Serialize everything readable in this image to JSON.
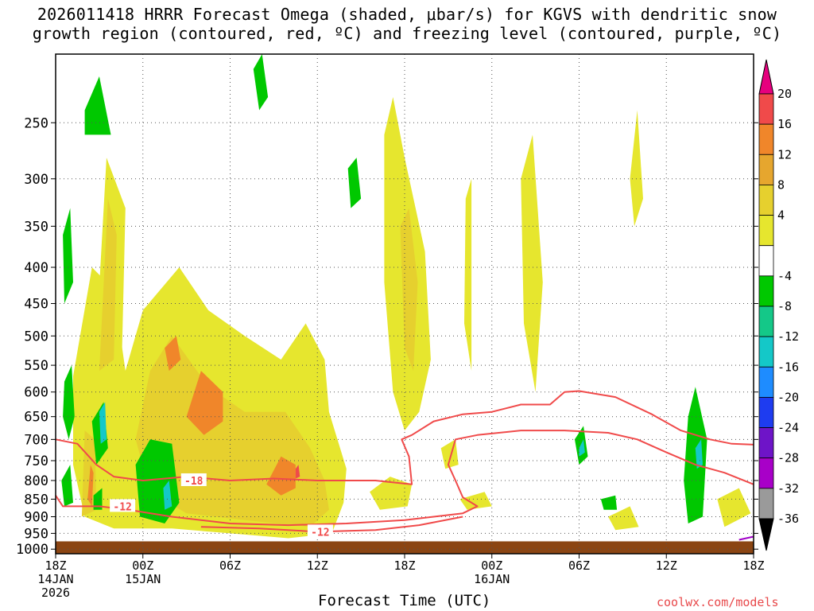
{
  "title_line1": "2026011418 HRRR Forecast Omega (shaded, μbar/s) for KGVS with dendritic snow",
  "title_line2": "growth region (contoured, red, ºC) and freezing level (contoured, purple, ºC)",
  "xlabel": "Forecast Time (UTC)",
  "credit": "coolwx.com/models",
  "chart_data": {
    "type": "heatmap",
    "x_ticks": [
      {
        "hour": 0,
        "lines": [
          "18Z",
          "14JAN",
          "2026"
        ]
      },
      {
        "hour": 6,
        "lines": [
          "00Z",
          "15JAN"
        ]
      },
      {
        "hour": 12,
        "lines": [
          "06Z"
        ]
      },
      {
        "hour": 18,
        "lines": [
          "12Z"
        ]
      },
      {
        "hour": 24,
        "lines": [
          "18Z"
        ]
      },
      {
        "hour": 30,
        "lines": [
          "00Z",
          "16JAN"
        ]
      },
      {
        "hour": 36,
        "lines": [
          "06Z"
        ]
      },
      {
        "hour": 42,
        "lines": [
          "12Z"
        ]
      },
      {
        "hour": 48,
        "lines": [
          "18Z"
        ]
      }
    ],
    "y_ticks": [
      250,
      300,
      350,
      400,
      450,
      500,
      550,
      600,
      650,
      700,
      750,
      800,
      850,
      900,
      950,
      1000
    ],
    "y_scale": "log-pressure",
    "y_range": [
      1015,
      200
    ],
    "x_range": [
      0,
      48
    ],
    "grid": true,
    "colorbar": {
      "labels": [
        "20",
        "16",
        "12",
        "8",
        "4",
        "-4",
        "-8",
        "-12",
        "-16",
        "-20",
        "-24",
        "-28",
        "-32",
        "-36"
      ],
      "colors": [
        "#e6007e",
        "#f04a4a",
        "#f0862a",
        "#e6a62e",
        "#e6d02e",
        "#e6e62e",
        "#ffffff",
        "#00c800",
        "#14c888",
        "#14c8c8",
        "#1e8cff",
        "#1e3cf0",
        "#6e14c8",
        "#a800c8",
        "#9a9a9a",
        "#000000"
      ]
    },
    "omega_regions": [
      {
        "level": 4,
        "pts": [
          [
            1.2,
            570
          ],
          [
            2.5,
            400
          ],
          [
            4,
            430
          ],
          [
            4.8,
            560
          ],
          [
            6,
            460
          ],
          [
            8.5,
            400
          ],
          [
            10.5,
            460
          ],
          [
            13,
            500
          ],
          [
            15.5,
            540
          ],
          [
            17.2,
            480
          ],
          [
            18.5,
            540
          ],
          [
            18.8,
            640
          ],
          [
            20,
            770
          ],
          [
            19.8,
            860
          ],
          [
            19,
            950
          ],
          [
            16,
            965
          ],
          [
            12,
            950
          ],
          [
            8,
            935
          ],
          [
            4,
            935
          ],
          [
            2,
            900
          ],
          [
            1.2,
            760
          ]
        ]
      },
      {
        "level": 4,
        "pts": [
          [
            2.5,
            650
          ],
          [
            3.5,
            280
          ],
          [
            4.8,
            330
          ],
          [
            4.5,
            600
          ]
        ]
      },
      {
        "level": 4,
        "pts": [
          [
            22.6,
            260
          ],
          [
            23.2,
            230
          ],
          [
            24,
            280
          ],
          [
            25.4,
            380
          ],
          [
            25.8,
            540
          ],
          [
            25,
            640
          ],
          [
            24,
            680
          ],
          [
            23.2,
            600
          ],
          [
            22.6,
            420
          ]
        ]
      },
      {
        "level": 4,
        "pts": [
          [
            21.6,
            830
          ],
          [
            23,
            790
          ],
          [
            24.5,
            810
          ],
          [
            24.2,
            870
          ],
          [
            22.3,
            880
          ]
        ]
      },
      {
        "level": 4,
        "pts": [
          [
            32,
            300
          ],
          [
            32.8,
            260
          ],
          [
            33.5,
            420
          ],
          [
            33,
            600
          ],
          [
            32.2,
            480
          ]
        ]
      },
      {
        "level": 4,
        "pts": [
          [
            28.2,
            320
          ],
          [
            28.6,
            300
          ],
          [
            28.6,
            560
          ],
          [
            28.1,
            480
          ]
        ]
      },
      {
        "level": 4,
        "pts": [
          [
            39.5,
            300
          ],
          [
            40,
            240
          ],
          [
            40.4,
            320
          ],
          [
            39.8,
            350
          ]
        ]
      },
      {
        "level": 4,
        "pts": [
          [
            26.5,
            720
          ],
          [
            27.5,
            700
          ],
          [
            27.7,
            760
          ],
          [
            26.8,
            770
          ]
        ]
      },
      {
        "level": 4,
        "pts": [
          [
            27.8,
            850
          ],
          [
            29.5,
            830
          ],
          [
            30,
            870
          ],
          [
            28.3,
            880
          ]
        ]
      },
      {
        "level": 4,
        "pts": [
          [
            38,
            900
          ],
          [
            39.5,
            870
          ],
          [
            40.1,
            930
          ],
          [
            38.5,
            940
          ]
        ]
      },
      {
        "level": 4,
        "pts": [
          [
            45.5,
            850
          ],
          [
            47,
            820
          ],
          [
            47.8,
            890
          ],
          [
            46,
            930
          ]
        ]
      },
      {
        "level": 8,
        "pts": [
          [
            3,
            560
          ],
          [
            3.6,
            320
          ],
          [
            4.2,
            360
          ],
          [
            4,
            540
          ]
        ]
      },
      {
        "level": 8,
        "pts": [
          [
            5.5,
            700
          ],
          [
            6.5,
            560
          ],
          [
            8,
            500
          ],
          [
            10.5,
            590
          ],
          [
            13,
            640
          ],
          [
            15.8,
            640
          ],
          [
            17.5,
            720
          ],
          [
            18.5,
            800
          ],
          [
            18.8,
            880
          ],
          [
            17.5,
            930
          ],
          [
            13,
            910
          ],
          [
            9,
            890
          ],
          [
            6.5,
            830
          ]
        ]
      },
      {
        "level": 8,
        "pts": [
          [
            23.7,
            350
          ],
          [
            24.3,
            330
          ],
          [
            24.9,
            420
          ],
          [
            24.6,
            560
          ],
          [
            24,
            520
          ]
        ]
      },
      {
        "level": 8,
        "pts": [
          [
            1.8,
            900
          ],
          [
            2,
            680
          ],
          [
            2.7,
            700
          ],
          [
            2.8,
            880
          ]
        ]
      },
      {
        "level": 12,
        "pts": [
          [
            9,
            650
          ],
          [
            10,
            560
          ],
          [
            11.5,
            600
          ],
          [
            11.5,
            660
          ],
          [
            10.2,
            690
          ]
        ]
      },
      {
        "level": 12,
        "pts": [
          [
            14.5,
            810
          ],
          [
            15.5,
            740
          ],
          [
            16.5,
            760
          ],
          [
            16.5,
            820
          ],
          [
            15.5,
            840
          ]
        ]
      },
      {
        "level": 12,
        "pts": [
          [
            7.5,
            520
          ],
          [
            8.3,
            500
          ],
          [
            8.6,
            540
          ],
          [
            7.8,
            560
          ]
        ]
      },
      {
        "level": 12,
        "pts": [
          [
            2.2,
            850
          ],
          [
            2.4,
            760
          ],
          [
            2.6,
            780
          ],
          [
            2.5,
            870
          ]
        ]
      },
      {
        "level": 16,
        "pts": [
          [
            16.5,
            770
          ],
          [
            16.7,
            760
          ],
          [
            16.8,
            790
          ],
          [
            16.5,
            795
          ]
        ]
      },
      {
        "level": -4,
        "pts": [
          [
            2,
            240
          ],
          [
            3,
            215
          ],
          [
            3.8,
            260
          ],
          [
            2,
            260
          ]
        ]
      },
      {
        "level": -4,
        "pts": [
          [
            13.6,
            210
          ],
          [
            14.2,
            200
          ],
          [
            14.6,
            230
          ],
          [
            14,
            240
          ]
        ]
      },
      {
        "level": -4,
        "pts": [
          [
            20.1,
            290
          ],
          [
            20.7,
            280
          ],
          [
            21,
            320
          ],
          [
            20.3,
            330
          ]
        ]
      },
      {
        "level": -4,
        "pts": [
          [
            0.6,
            580
          ],
          [
            1.1,
            550
          ],
          [
            1.3,
            650
          ],
          [
            0.9,
            700
          ],
          [
            0.5,
            650
          ]
        ]
      },
      {
        "level": -4,
        "pts": [
          [
            0.5,
            360
          ],
          [
            1,
            330
          ],
          [
            1.2,
            420
          ],
          [
            0.6,
            450
          ]
        ]
      },
      {
        "level": -4,
        "pts": [
          [
            0.4,
            800
          ],
          [
            1,
            760
          ],
          [
            1.2,
            860
          ],
          [
            0.6,
            870
          ]
        ]
      },
      {
        "level": -4,
        "pts": [
          [
            2.5,
            660
          ],
          [
            3.3,
            620
          ],
          [
            3.6,
            720
          ],
          [
            2.8,
            760
          ]
        ]
      },
      {
        "level": -4,
        "pts": [
          [
            5.5,
            760
          ],
          [
            6.5,
            700
          ],
          [
            8,
            710
          ],
          [
            8.5,
            860
          ],
          [
            7.5,
            920
          ],
          [
            5.8,
            900
          ]
        ]
      },
      {
        "level": -4,
        "pts": [
          [
            2.6,
            840
          ],
          [
            3.2,
            820
          ],
          [
            3.2,
            880
          ],
          [
            2.6,
            880
          ]
        ]
      },
      {
        "level": -4,
        "pts": [
          [
            35.7,
            700
          ],
          [
            36.3,
            670
          ],
          [
            36.6,
            740
          ],
          [
            36,
            760
          ]
        ]
      },
      {
        "level": -4,
        "pts": [
          [
            37.5,
            850
          ],
          [
            38.5,
            840
          ],
          [
            38.6,
            880
          ],
          [
            37.7,
            880
          ]
        ]
      },
      {
        "level": -4,
        "pts": [
          [
            43.5,
            650
          ],
          [
            44,
            590
          ],
          [
            44.8,
            700
          ],
          [
            44.5,
            900
          ],
          [
            43.5,
            920
          ],
          [
            43.2,
            800
          ]
        ]
      },
      {
        "level": -8,
        "pts": [
          [
            3,
            640
          ],
          [
            3.4,
            620
          ],
          [
            3.5,
            700
          ],
          [
            3.1,
            710
          ]
        ]
      },
      {
        "level": -8,
        "pts": [
          [
            7.4,
            820
          ],
          [
            7.8,
            800
          ],
          [
            8,
            870
          ],
          [
            7.5,
            880
          ]
        ]
      },
      {
        "level": -8,
        "pts": [
          [
            36,
            720
          ],
          [
            36.3,
            700
          ],
          [
            36.4,
            730
          ],
          [
            36,
            740
          ]
        ]
      },
      {
        "level": -8,
        "pts": [
          [
            44,
            720
          ],
          [
            44.4,
            700
          ],
          [
            44.5,
            760
          ],
          [
            44.1,
            770
          ]
        ]
      }
    ],
    "contours": [
      {
        "label": "-18",
        "color": "#f04a4a",
        "label_at": [
          9.5,
          800
        ],
        "pts": [
          [
            0,
            700
          ],
          [
            1.5,
            710
          ],
          [
            2.8,
            760
          ],
          [
            4,
            790
          ],
          [
            6,
            800
          ],
          [
            9,
            790
          ],
          [
            12,
            800
          ],
          [
            15,
            795
          ],
          [
            18,
            800
          ],
          [
            22,
            800
          ],
          [
            24.5,
            810
          ],
          [
            24.3,
            740
          ],
          [
            23.8,
            700
          ],
          [
            24.5,
            690
          ],
          [
            26,
            660
          ],
          [
            28,
            645
          ],
          [
            30,
            640
          ],
          [
            32,
            625
          ],
          [
            34,
            625
          ],
          [
            35,
            600
          ],
          [
            36,
            598
          ],
          [
            38.5,
            610
          ],
          [
            41,
            645
          ],
          [
            43,
            680
          ],
          [
            45,
            700
          ],
          [
            46.5,
            710
          ],
          [
            48,
            712
          ]
        ]
      },
      {
        "label": "-12",
        "color": "#f04a4a",
        "label_at": [
          4.6,
          870
        ],
        "pts": [
          [
            0,
            840
          ],
          [
            0.5,
            870
          ],
          [
            3,
            870
          ],
          [
            5,
            880
          ],
          [
            8,
            900
          ],
          [
            12,
            920
          ],
          [
            16,
            925
          ],
          [
            20,
            920
          ],
          [
            24,
            910
          ],
          [
            28,
            890
          ],
          [
            29,
            870
          ],
          [
            28,
            845
          ],
          [
            27.5,
            800
          ],
          [
            27,
            760
          ],
          [
            27.5,
            700
          ],
          [
            29,
            690
          ],
          [
            32,
            680
          ],
          [
            35,
            680
          ],
          [
            38,
            685
          ],
          [
            40,
            700
          ],
          [
            42,
            730
          ],
          [
            44,
            760
          ],
          [
            46,
            780
          ],
          [
            48,
            810
          ]
        ]
      },
      {
        "label": "-12",
        "color": "#f04a4a",
        "label_at": [
          18.2,
          945
        ],
        "pts": [
          [
            10,
            930
          ],
          [
            14,
            935
          ],
          [
            18,
            945
          ],
          [
            22,
            940
          ],
          [
            25,
            925
          ],
          [
            28,
            900
          ]
        ]
      },
      {
        "label": "",
        "color": "#a000c8",
        "pts": [
          [
            47,
            970
          ],
          [
            48,
            960
          ]
        ]
      }
    ]
  }
}
